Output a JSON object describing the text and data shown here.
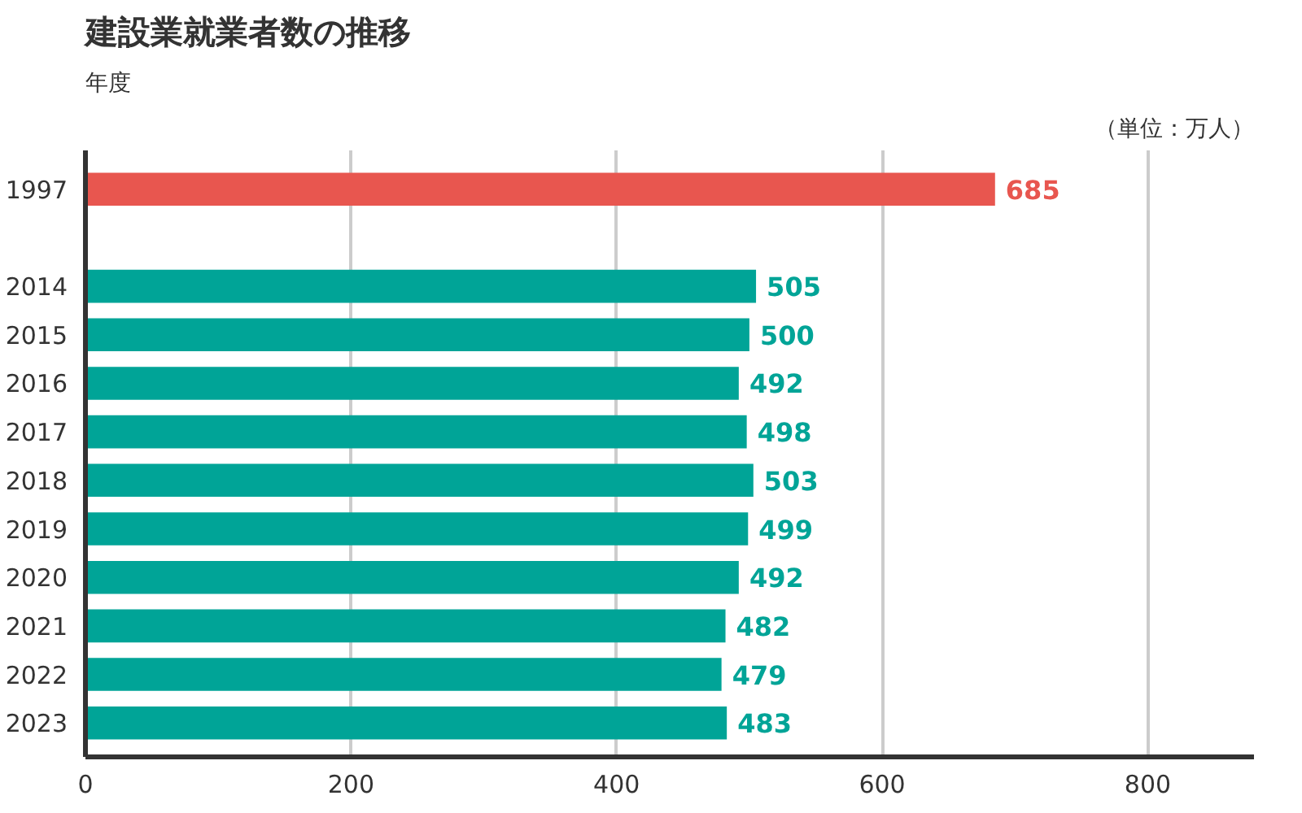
{
  "chart_data": {
    "type": "bar",
    "orientation": "horizontal",
    "title": "建設業就業者数の推移",
    "ylabel": "年度",
    "annotations": [
      "（単位：万人）"
    ],
    "categories": [
      "1997",
      "2014",
      "2015",
      "2016",
      "2017",
      "2018",
      "2019",
      "2020",
      "2021",
      "2022",
      "2023"
    ],
    "values": [
      685,
      505,
      500,
      492,
      498,
      503,
      499,
      492,
      482,
      479,
      483
    ],
    "colors": [
      "#e8564f",
      "#00a497",
      "#00a497",
      "#00a497",
      "#00a497",
      "#00a497",
      "#00a497",
      "#00a497",
      "#00a497",
      "#00a497",
      "#00a497"
    ],
    "xlim": [
      0,
      880
    ],
    "xticks": [
      0,
      200,
      400,
      600,
      800
    ],
    "grid": "x",
    "data_labels": true
  }
}
